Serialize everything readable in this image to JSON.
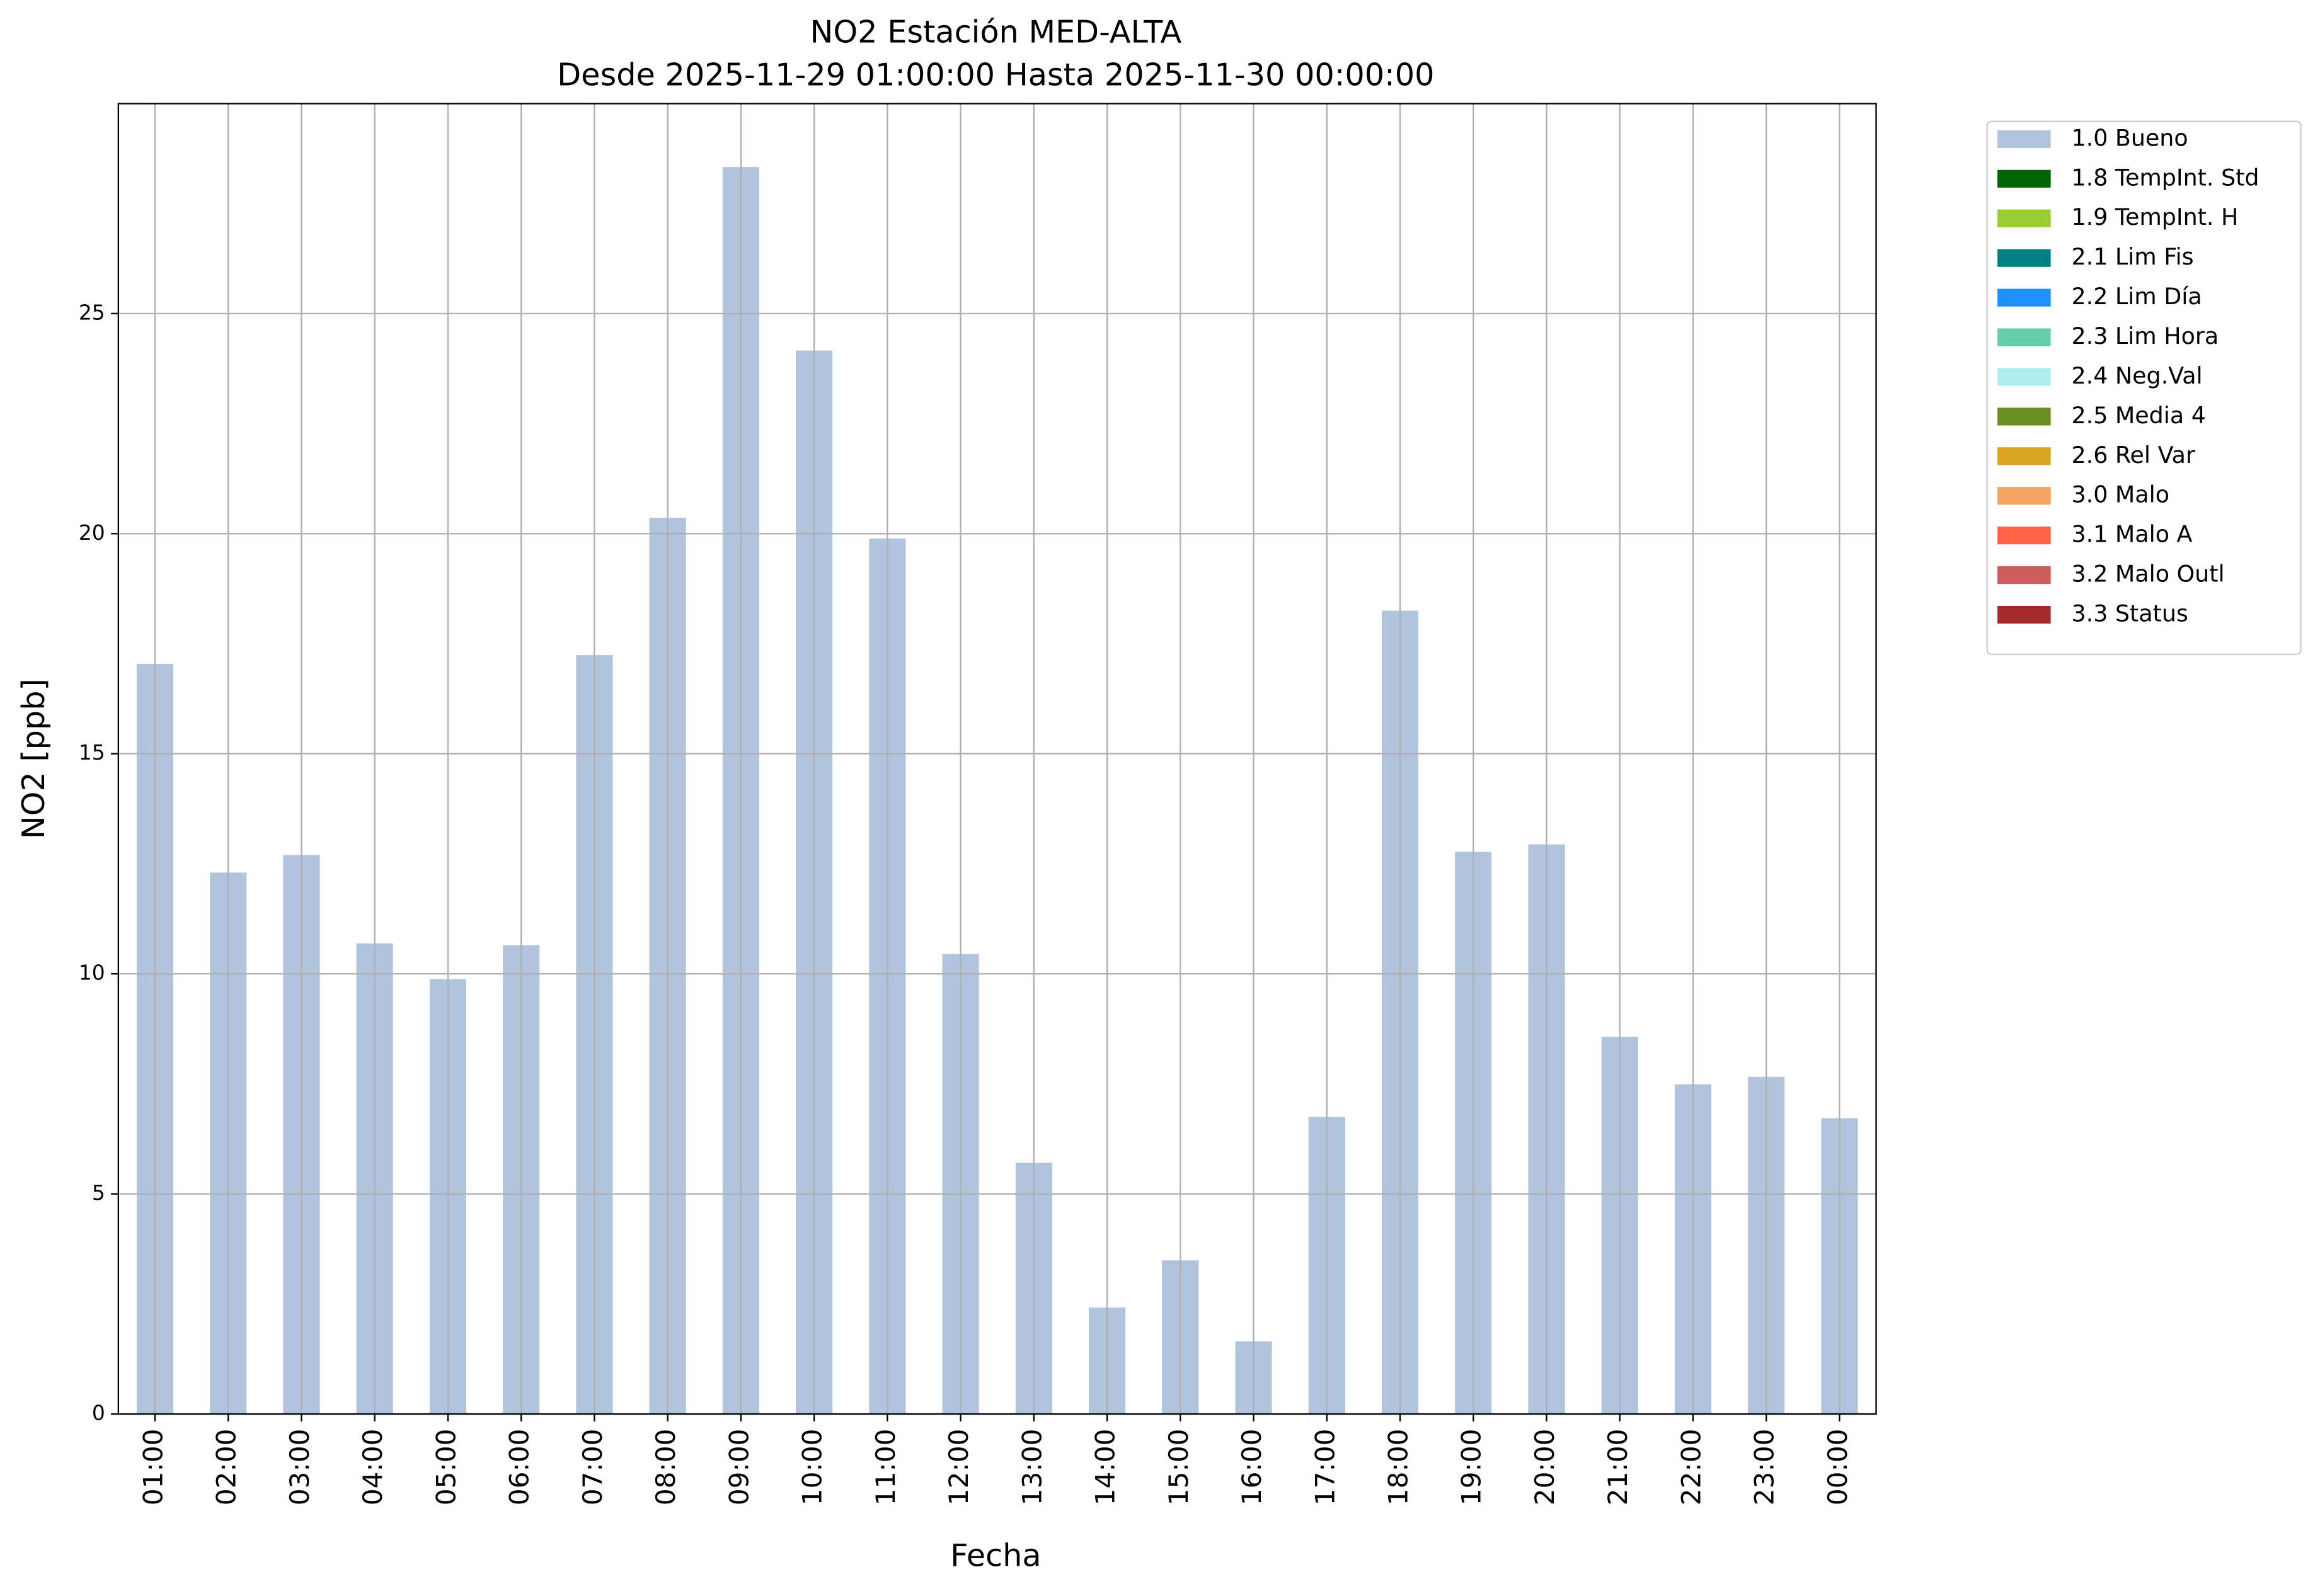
{
  "chart_data": {
    "type": "bar",
    "title": "NO2 Estación MED-ALTA",
    "subtitle": "Desde 2025-11-29 01:00:00 Hasta 2025-11-30 00:00:00",
    "x_label": "Fecha",
    "y_label": "NO2 [ppb]",
    "categories": [
      "01:00",
      "02:00",
      "03:00",
      "04:00",
      "05:00",
      "06:00",
      "07:00",
      "08:00",
      "09:00",
      "10:00",
      "11:00",
      "12:00",
      "13:00",
      "14:00",
      "15:00",
      "16:00",
      "17:00",
      "18:00",
      "19:00",
      "20:00",
      "21:00",
      "22:00",
      "23:00",
      "00:00"
    ],
    "series": [
      {
        "name": "1.0 Bueno",
        "color": "#b0c4de",
        "values": [
          17.04,
          12.3,
          12.7,
          10.69,
          9.88,
          10.65,
          17.24,
          20.36,
          28.33,
          24.16,
          19.89,
          10.45,
          5.71,
          2.42,
          3.49,
          1.65,
          6.75,
          18.25,
          12.77,
          12.94,
          8.57,
          7.49,
          7.66,
          6.72
        ]
      },
      {
        "name": "1.8 TempInt. Std",
        "color": "#006400"
      },
      {
        "name": "1.9 TempInt. H",
        "color": "#9acd32"
      },
      {
        "name": "2.1 Lim Fis",
        "color": "#008080"
      },
      {
        "name": "2.2 Lim Día",
        "color": "#1e90ff"
      },
      {
        "name": "2.3 Lim Hora",
        "color": "#66cdaa"
      },
      {
        "name": "2.4 Neg.Val",
        "color": "#afeeee"
      },
      {
        "name": "2.5 Media 4",
        "color": "#6b8e23"
      },
      {
        "name": "2.6 Rel Var",
        "color": "#daa520"
      },
      {
        "name": "3.0 Malo",
        "color": "#f4a460"
      },
      {
        "name": "3.1 Malo A",
        "color": "#ff6347"
      },
      {
        "name": "3.2 Malo Outl",
        "color": "#cd5c5c"
      },
      {
        "name": "3.3 Status",
        "color": "#a52a2a"
      }
    ],
    "ylim": [
      0,
      29.77
    ],
    "yticks": [
      0,
      5,
      10,
      15,
      20,
      25
    ],
    "grid": true,
    "legend": "outside upper right"
  }
}
